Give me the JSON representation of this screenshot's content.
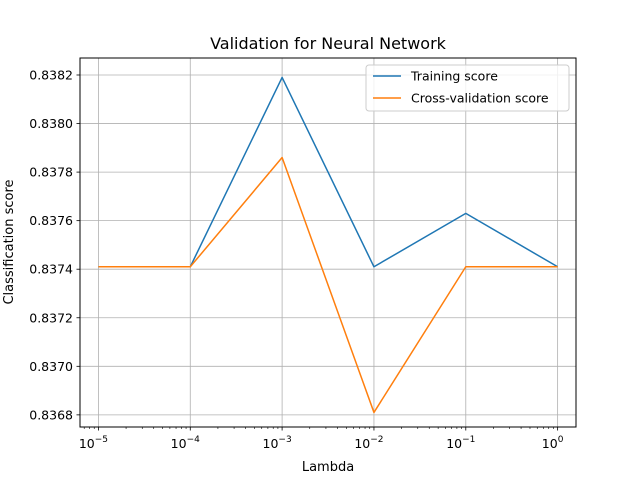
{
  "chart_data": {
    "type": "line",
    "title": "Validation for Neural Network",
    "xlabel": "Lambda",
    "ylabel": "Classification score",
    "x_scale": "log",
    "x": [
      1e-05,
      0.0001,
      0.001,
      0.01,
      0.1,
      1
    ],
    "x_tick_labels": [
      {
        "base": "10",
        "exp": "−5"
      },
      {
        "base": "10",
        "exp": "−4"
      },
      {
        "base": "10",
        "exp": "−3"
      },
      {
        "base": "10",
        "exp": "−2"
      },
      {
        "base": "10",
        "exp": "−1"
      },
      {
        "base": "10",
        "exp": "0"
      }
    ],
    "y_ticks": [
      0.8368,
      0.837,
      0.8372,
      0.8374,
      0.8376,
      0.8378,
      0.838,
      0.8382
    ],
    "y_tick_labels": [
      "0.8368",
      "0.8370",
      "0.8372",
      "0.8374",
      "0.8376",
      "0.8378",
      "0.8380",
      "0.8382"
    ],
    "xlim": [
      6.3e-06,
      1.585
    ],
    "ylim": [
      0.83675,
      0.83827
    ],
    "grid": true,
    "legend_position": "top-right",
    "series": [
      {
        "name": "Training score",
        "color": "#1f77b4",
        "values": [
          0.83741,
          0.83741,
          0.83819,
          0.83741,
          0.83763,
          0.83741
        ]
      },
      {
        "name": "Cross-validation score",
        "color": "#ff7f0e",
        "values": [
          0.83741,
          0.83741,
          0.83786,
          0.83681,
          0.83741,
          0.83741
        ]
      }
    ]
  }
}
